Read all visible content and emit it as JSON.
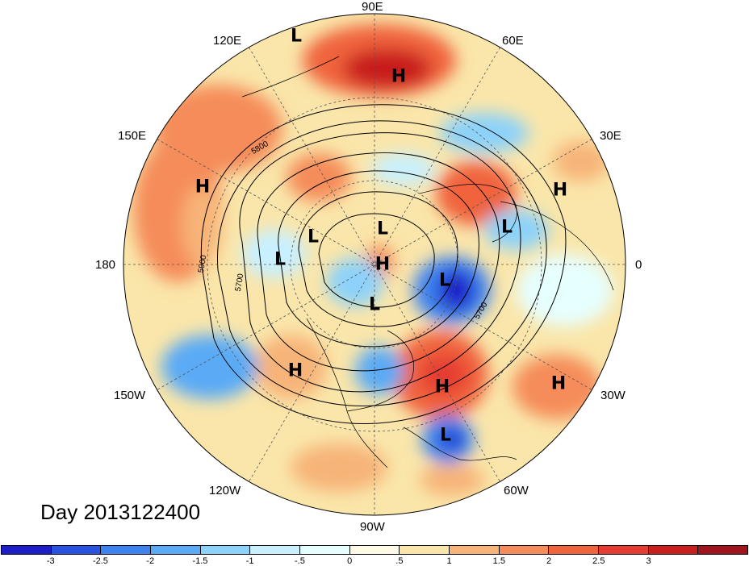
{
  "date_label": "Day 2013122400",
  "longitude_labels": {
    "n90": "90E",
    "e120": "120E",
    "e60": "60E",
    "e150": "150E",
    "e30": "30E",
    "w180": "180",
    "zero": "0",
    "w150": "150W",
    "w30": "30W",
    "w120": "120W",
    "w60": "60W",
    "w90": "90W"
  },
  "contour_labels": {
    "c5800": "5800",
    "c5900": "5900",
    "c5700a": "5700",
    "c5700b": "5700"
  },
  "pressure_centers": [
    {
      "type": "L",
      "name": "low-siberia-north"
    },
    {
      "type": "H",
      "name": "high-urals"
    },
    {
      "type": "H",
      "name": "high-pacific-west"
    },
    {
      "type": "H",
      "name": "high-europe"
    },
    {
      "type": "L",
      "name": "low-bering"
    },
    {
      "type": "L",
      "name": "low-arctic-pacific"
    },
    {
      "type": "L",
      "name": "low-arctic"
    },
    {
      "type": "L",
      "name": "low-scandinavia"
    },
    {
      "type": "H",
      "name": "high-greenland"
    },
    {
      "type": "L",
      "name": "low-iceland"
    },
    {
      "type": "L",
      "name": "low-hudson"
    },
    {
      "type": "H",
      "name": "high-west-na"
    },
    {
      "type": "H",
      "name": "high-atlantic-west"
    },
    {
      "type": "H",
      "name": "high-atlantic-east"
    },
    {
      "type": "L",
      "name": "low-caribbean"
    }
  ],
  "colorbar": {
    "colors": [
      "#1e1ec8",
      "#2a52e0",
      "#3c82f0",
      "#5aaaf5",
      "#8cd2fa",
      "#c8f0ff",
      "#e6ffff",
      "#fffae6",
      "#fae6aa",
      "#f7b478",
      "#f58c5a",
      "#f0643c",
      "#e63c32",
      "#c81e1e",
      "#a0141e"
    ],
    "tick_labels": [
      "-3",
      "-2.5",
      "-2",
      "-1.5",
      "-1",
      "-.5",
      "0",
      ".5",
      "1",
      "1.5",
      "2",
      "2.5",
      "3"
    ]
  }
}
